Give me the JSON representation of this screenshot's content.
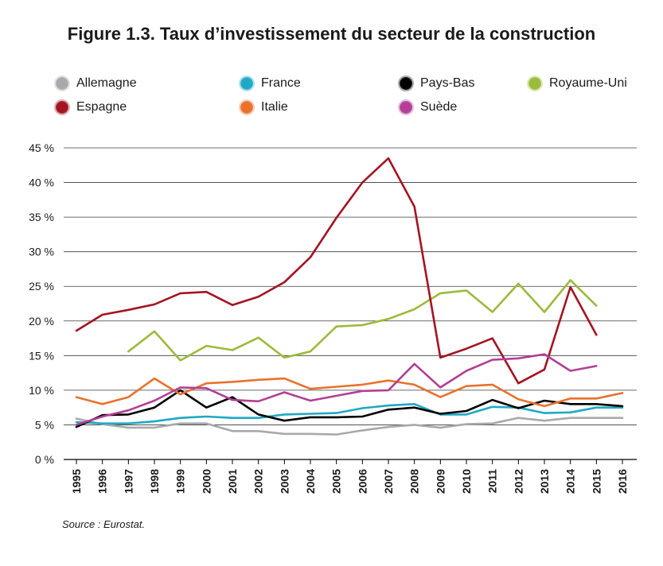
{
  "page": {
    "title": "Figure 1.3. Taux d’investissement du secteur de la construction",
    "source": "Source : Eurostat."
  },
  "chart_data": {
    "type": "line",
    "title": "Figure 1.3. Taux d’investissement du secteur de la construction",
    "xlabel": "",
    "ylabel": "",
    "ylim": [
      0,
      45
    ],
    "yticks": [
      "0 %",
      "5 %",
      "10 %",
      "15 %",
      "20 %",
      "25 %",
      "30 %",
      "35 %",
      "40 %",
      "45 %"
    ],
    "grid": true,
    "legend_position": "top",
    "x": [
      "1995",
      "1996",
      "1997",
      "1998",
      "1999",
      "2000",
      "2001",
      "2002",
      "2003",
      "2004",
      "2005",
      "2006",
      "2007",
      "2008",
      "2009",
      "2010",
      "2011",
      "2012",
      "2013",
      "2014",
      "2015",
      "2016"
    ],
    "series": [
      {
        "name": "Allemagne",
        "color": "#a7a9ac",
        "values": [
          5.9,
          5.1,
          4.6,
          4.6,
          5.2,
          5.2,
          4.1,
          4.1,
          3.7,
          3.7,
          3.6,
          4.2,
          4.7,
          5.0,
          4.6,
          5.1,
          5.2,
          6.0,
          5.6,
          6.0,
          6.0,
          6.0
        ]
      },
      {
        "name": "France",
        "color": "#1fa9c4",
        "values": [
          5.4,
          5.2,
          5.2,
          5.5,
          6.0,
          6.2,
          6.0,
          6.0,
          6.5,
          6.6,
          6.7,
          7.4,
          7.8,
          8.0,
          6.5,
          6.5,
          7.6,
          7.5,
          6.7,
          6.8,
          7.5,
          7.5
        ]
      },
      {
        "name": "Pays-Bas",
        "color": "#000000",
        "values": [
          4.7,
          6.4,
          6.5,
          7.5,
          10.0,
          7.5,
          9.0,
          6.5,
          5.6,
          6.1,
          6.1,
          6.2,
          7.2,
          7.5,
          6.6,
          7.0,
          8.6,
          7.4,
          8.5,
          8.0,
          8.0,
          7.7
        ]
      },
      {
        "name": "Royaume-Uni",
        "color": "#9bbb3b",
        "values": [
          null,
          null,
          15.6,
          18.5,
          14.3,
          16.4,
          15.8,
          17.6,
          14.7,
          15.6,
          19.2,
          19.4,
          20.3,
          21.7,
          24.0,
          24.4,
          21.3,
          25.4,
          21.3,
          25.9,
          22.2,
          null
        ]
      },
      {
        "name": "Espagne",
        "color": "#a41422",
        "values": [
          18.6,
          20.9,
          21.6,
          22.4,
          24.0,
          24.2,
          22.3,
          23.5,
          25.6,
          29.2,
          34.9,
          40.0,
          43.5,
          36.5,
          14.7,
          16.0,
          17.5,
          11.0,
          13.0,
          24.9,
          18.0,
          null
        ]
      },
      {
        "name": "Italie",
        "color": "#e8722c",
        "values": [
          9.0,
          8.0,
          9.0,
          11.7,
          9.4,
          11.0,
          11.2,
          11.5,
          11.7,
          10.2,
          10.5,
          10.8,
          11.4,
          10.8,
          9.0,
          10.6,
          10.8,
          8.7,
          7.7,
          8.8,
          8.8,
          9.6
        ]
      },
      {
        "name": "Suède",
        "color": "#b23f95",
        "values": [
          5.0,
          6.2,
          7.1,
          8.5,
          10.4,
          10.3,
          8.6,
          8.4,
          9.7,
          8.5,
          9.2,
          9.9,
          10.0,
          13.8,
          10.4,
          12.8,
          14.4,
          14.6,
          15.2,
          12.8,
          13.5,
          null
        ]
      }
    ]
  }
}
